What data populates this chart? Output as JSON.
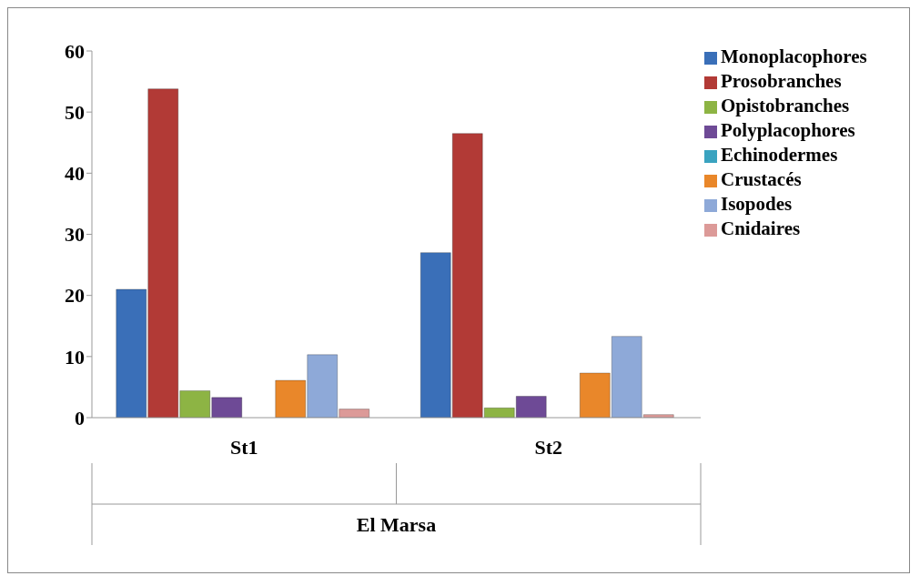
{
  "chart_data": {
    "type": "bar",
    "categories": [
      "St1",
      "St2"
    ],
    "xlabel": "El Marsa",
    "series": [
      {
        "name": "Monoplacophores",
        "color": "#3a6fb8",
        "values": [
          21,
          27
        ]
      },
      {
        "name": "Prosobranches",
        "color": "#b23a36",
        "values": [
          53.8,
          46.5
        ]
      },
      {
        "name": "Opistobranches",
        "color": "#8db444",
        "values": [
          4.4,
          1.6
        ]
      },
      {
        "name": "Polyplacophores",
        "color": "#6e4a96",
        "values": [
          3.3,
          3.5
        ]
      },
      {
        "name": "Echinodermes",
        "color": "#3aa3c0",
        "values": [
          0,
          0
        ]
      },
      {
        "name": "Crustacés",
        "color": "#e9872a",
        "values": [
          6.1,
          7.3
        ]
      },
      {
        "name": "Isopodes",
        "color": "#8ea9d8",
        "values": [
          10.3,
          13.3
        ]
      },
      {
        "name": "Cnidaires",
        "color": "#dc9a98",
        "values": [
          1.4,
          0.5
        ]
      }
    ],
    "ylim": [
      0,
      60
    ],
    "yticks": [
      0,
      10,
      20,
      30,
      40,
      50,
      60
    ],
    "grid": false,
    "legend": "top right"
  }
}
